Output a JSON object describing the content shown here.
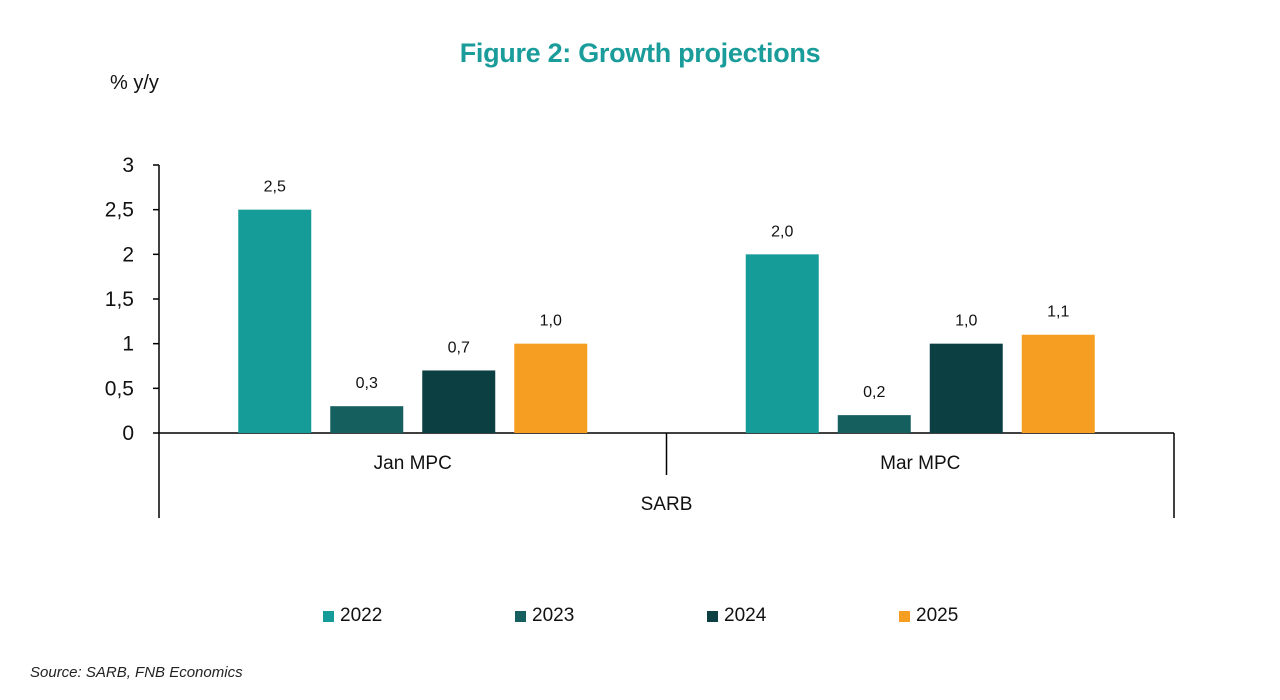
{
  "chart_data": {
    "type": "bar",
    "title": "Figure 2: Growth projections",
    "ylabel": "% y/y",
    "ylim": [
      0,
      3
    ],
    "yticks": [
      "0",
      "0,5",
      "1",
      "1,5",
      "2",
      "2,5",
      "3"
    ],
    "categories": [
      "Jan MPC",
      "Mar MPC"
    ],
    "group_label": "SARB",
    "series": [
      {
        "name": "2022",
        "color": "#169c98",
        "values": [
          2.5,
          2.0
        ],
        "labels": [
          "2,5",
          "2,0"
        ]
      },
      {
        "name": "2023",
        "color": "#155f5f",
        "values": [
          0.3,
          0.2
        ],
        "labels": [
          "0,3",
          "0,2"
        ]
      },
      {
        "name": "2024",
        "color": "#0b3f42",
        "values": [
          0.7,
          1.0
        ],
        "labels": [
          "0,7",
          "1,0"
        ]
      },
      {
        "name": "2025",
        "color": "#f59e22",
        "values": [
          1.0,
          1.1
        ],
        "labels": [
          "1,0",
          "1,1"
        ]
      }
    ],
    "legend_position": "bottom",
    "grid": false
  },
  "source": "Source: SARB,  FNB Economics"
}
